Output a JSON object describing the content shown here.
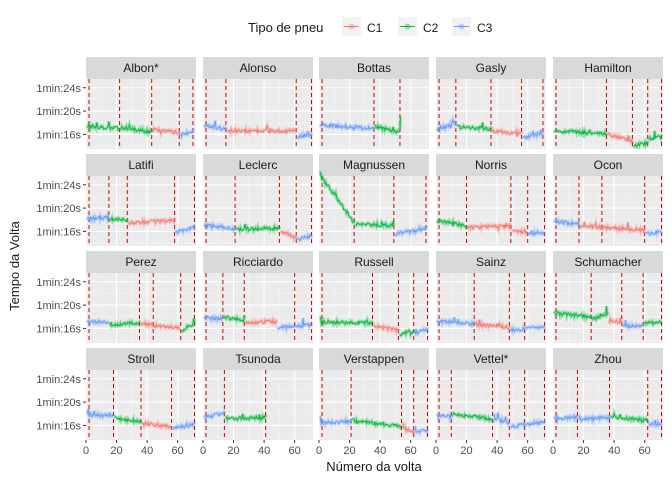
{
  "chart_data": {
    "type": "line",
    "title": "",
    "xlabel": "Número da volta",
    "ylabel": "Tempo da Volta",
    "xlim": [
      0,
      72
    ],
    "xticks": [
      0,
      20,
      40,
      60
    ],
    "ylim": [
      73.5,
      85.5
    ],
    "yticks": [
      {
        "value": 84,
        "label": "1min:24s"
      },
      {
        "value": 80,
        "label": "1min:20s"
      },
      {
        "value": 76,
        "label": "1min:16s"
      }
    ],
    "grid": true,
    "legend": {
      "title": "Tipo de pneu",
      "position": "top",
      "entries": [
        {
          "key": "C1",
          "label": "C1",
          "color": "#F8766D"
        },
        {
          "key": "C2",
          "label": "C2",
          "color": "#00BA38"
        },
        {
          "key": "C3",
          "label": "C3",
          "color": "#619CFF"
        }
      ]
    },
    "pit_stop_line_color": "#CC0000",
    "panels": [
      {
        "driver": "Albon*",
        "pits": [
          2,
          22,
          43,
          61,
          70
        ],
        "stints": [
          {
            "compound": "C2",
            "start": 1,
            "end": 22,
            "y0": 77.4,
            "y1": 77.0
          },
          {
            "compound": "C2",
            "start": 23,
            "end": 43,
            "y0": 77.2,
            "y1": 76.4
          },
          {
            "compound": "C1",
            "start": 44,
            "end": 61,
            "y0": 76.8,
            "y1": 76.3
          },
          {
            "compound": "C3",
            "start": 62,
            "end": 70,
            "y0": 75.9,
            "y1": 76.6
          }
        ]
      },
      {
        "driver": "Alonso",
        "pits": [
          2,
          15,
          61,
          71
        ],
        "stints": [
          {
            "compound": "C3",
            "start": 1,
            "end": 15,
            "y0": 77.6,
            "y1": 76.9
          },
          {
            "compound": "C1",
            "start": 16,
            "end": 61,
            "y0": 76.6,
            "y1": 76.6
          },
          {
            "compound": "C3",
            "start": 62,
            "end": 71,
            "y0": 75.5,
            "y1": 76.0
          }
        ]
      },
      {
        "driver": "Bottas",
        "pits": [
          2,
          36,
          53
        ],
        "stints": [
          {
            "compound": "C3",
            "start": 1,
            "end": 36,
            "y0": 77.6,
            "y1": 77.0
          },
          {
            "compound": "C2",
            "start": 37,
            "end": 52,
            "y0": 77.3,
            "y1": 76.4
          },
          {
            "compound": "C2",
            "start": 53,
            "end": 53,
            "y0": 77.0,
            "y1": 78.8
          }
        ]
      },
      {
        "driver": "Gasly",
        "pits": [
          2,
          13,
          36,
          56,
          70
        ],
        "stints": [
          {
            "compound": "C3",
            "start": 1,
            "end": 13,
            "y0": 76.8,
            "y1": 78.0
          },
          {
            "compound": "C2",
            "start": 14,
            "end": 36,
            "y0": 77.3,
            "y1": 77.0
          },
          {
            "compound": "C1",
            "start": 37,
            "end": 56,
            "y0": 76.6,
            "y1": 76.1
          },
          {
            "compound": "C3",
            "start": 57,
            "end": 70,
            "y0": 75.4,
            "y1": 76.3
          }
        ]
      },
      {
        "driver": "Hamilton",
        "pits": [
          2,
          35,
          52,
          62,
          71
        ],
        "stints": [
          {
            "compound": "C2",
            "start": 1,
            "end": 35,
            "y0": 76.6,
            "y1": 76.1
          },
          {
            "compound": "C1",
            "start": 36,
            "end": 52,
            "y0": 76.0,
            "y1": 74.8
          },
          {
            "compound": "C2",
            "start": 53,
            "end": 62,
            "y0": 74.1,
            "y1": 74.5
          },
          {
            "compound": "C2",
            "start": 63,
            "end": 71,
            "y0": 75.2,
            "y1": 75.6
          }
        ]
      },
      {
        "driver": "Latifi",
        "pits": [
          2,
          15,
          27,
          58,
          71
        ],
        "stints": [
          {
            "compound": "C3",
            "start": 1,
            "end": 15,
            "y0": 78.2,
            "y1": 78.4
          },
          {
            "compound": "C2",
            "start": 16,
            "end": 27,
            "y0": 78.1,
            "y1": 78.0
          },
          {
            "compound": "C1",
            "start": 28,
            "end": 58,
            "y0": 77.5,
            "y1": 77.9
          },
          {
            "compound": "C3",
            "start": 59,
            "end": 71,
            "y0": 75.9,
            "y1": 76.6
          }
        ]
      },
      {
        "driver": "Leclerc",
        "pits": [
          2,
          21,
          50,
          61,
          71
        ],
        "stints": [
          {
            "compound": "C3",
            "start": 1,
            "end": 21,
            "y0": 77.1,
            "y1": 76.4
          },
          {
            "compound": "C2",
            "start": 22,
            "end": 50,
            "y0": 76.3,
            "y1": 76.6
          },
          {
            "compound": "C1",
            "start": 51,
            "end": 61,
            "y0": 76.1,
            "y1": 74.8
          },
          {
            "compound": "C3",
            "start": 62,
            "end": 71,
            "y0": 74.6,
            "y1": 75.2
          }
        ]
      },
      {
        "driver": "Magnussen",
        "pits": [
          2,
          23,
          49,
          70
        ],
        "stints": [
          {
            "compound": "C2",
            "start": 1,
            "end": 23,
            "y0": 85.6,
            "y1": 77.5
          },
          {
            "compound": "C2",
            "start": 24,
            "end": 49,
            "y0": 77.3,
            "y1": 77.0
          },
          {
            "compound": "C3",
            "start": 50,
            "end": 70,
            "y0": 75.6,
            "y1": 76.4
          }
        ]
      },
      {
        "driver": "Norris",
        "pits": [
          2,
          20,
          49,
          60,
          71
        ],
        "stints": [
          {
            "compound": "C2",
            "start": 1,
            "end": 20,
            "y0": 77.8,
            "y1": 77.0
          },
          {
            "compound": "C1",
            "start": 21,
            "end": 49,
            "y0": 76.7,
            "y1": 76.9
          },
          {
            "compound": "C1",
            "start": 50,
            "end": 60,
            "y0": 76.2,
            "y1": 75.7
          },
          {
            "compound": "C3",
            "start": 61,
            "end": 71,
            "y0": 75.7,
            "y1": 75.8
          }
        ]
      },
      {
        "driver": "Ocon",
        "pits": [
          2,
          17,
          32,
          60,
          71
        ],
        "stints": [
          {
            "compound": "C3",
            "start": 1,
            "end": 17,
            "y0": 77.7,
            "y1": 77.3
          },
          {
            "compound": "C1",
            "start": 18,
            "end": 60,
            "y0": 76.9,
            "y1": 76.2
          },
          {
            "compound": "C3",
            "start": 61,
            "end": 71,
            "y0": 75.6,
            "y1": 75.9
          }
        ]
      },
      {
        "driver": "Perez",
        "pits": [
          2,
          35,
          44,
          62,
          71
        ],
        "stints": [
          {
            "compound": "C3",
            "start": 1,
            "end": 15,
            "y0": 77.1,
            "y1": 77.1
          },
          {
            "compound": "C2",
            "start": 16,
            "end": 35,
            "y0": 76.6,
            "y1": 77.0
          },
          {
            "compound": "C1",
            "start": 36,
            "end": 62,
            "y0": 76.8,
            "y1": 76.0
          },
          {
            "compound": "C2",
            "start": 63,
            "end": 71,
            "y0": 75.6,
            "y1": 76.9
          }
        ]
      },
      {
        "driver": "Ricciardo",
        "pits": [
          2,
          13,
          27,
          60,
          71
        ],
        "stints": [
          {
            "compound": "C3",
            "start": 1,
            "end": 13,
            "y0": 77.8,
            "y1": 77.6
          },
          {
            "compound": "C2",
            "start": 14,
            "end": 27,
            "y0": 77.9,
            "y1": 77.3
          },
          {
            "compound": "C1",
            "start": 28,
            "end": 48,
            "y0": 77.0,
            "y1": 77.2
          },
          {
            "compound": "C3",
            "start": 49,
            "end": 71,
            "y0": 76.1,
            "y1": 76.6
          }
        ]
      },
      {
        "driver": "Russell",
        "pits": [
          2,
          35,
          52,
          62,
          71
        ],
        "stints": [
          {
            "compound": "C2",
            "start": 1,
            "end": 35,
            "y0": 77.1,
            "y1": 76.9
          },
          {
            "compound": "C1",
            "start": 36,
            "end": 52,
            "y0": 76.4,
            "y1": 75.7
          },
          {
            "compound": "C2",
            "start": 53,
            "end": 62,
            "y0": 75.0,
            "y1": 75.6
          },
          {
            "compound": "C3",
            "start": 63,
            "end": 71,
            "y0": 75.2,
            "y1": 75.8
          }
        ]
      },
      {
        "driver": "Sainz",
        "pits": [
          2,
          25,
          48,
          58,
          71
        ],
        "stints": [
          {
            "compound": "C3",
            "start": 1,
            "end": 25,
            "y0": 77.2,
            "y1": 76.8
          },
          {
            "compound": "C1",
            "start": 26,
            "end": 48,
            "y0": 76.7,
            "y1": 76.2
          },
          {
            "compound": "C3",
            "start": 49,
            "end": 58,
            "y0": 75.7,
            "y1": 75.9
          },
          {
            "compound": "C3",
            "start": 59,
            "end": 71,
            "y0": 76.0,
            "y1": 76.2
          }
        ]
      },
      {
        "driver": "Schumacher",
        "pits": [
          2,
          25,
          45,
          59,
          71
        ],
        "stints": [
          {
            "compound": "C2",
            "start": 1,
            "end": 25,
            "y0": 78.6,
            "y1": 78.0
          },
          {
            "compound": "C2",
            "start": 26,
            "end": 36,
            "y0": 77.6,
            "y1": 78.6
          },
          {
            "compound": "C1",
            "start": 37,
            "end": 45,
            "y0": 77.5,
            "y1": 77.0
          },
          {
            "compound": "C3",
            "start": 46,
            "end": 59,
            "y0": 76.3,
            "y1": 76.6
          },
          {
            "compound": "C2",
            "start": 60,
            "end": 71,
            "y0": 76.8,
            "y1": 77.2
          }
        ]
      },
      {
        "driver": "Stroll",
        "pits": [
          2,
          18,
          36,
          56,
          71
        ],
        "stints": [
          {
            "compound": "C3",
            "start": 1,
            "end": 18,
            "y0": 77.8,
            "y1": 77.6
          },
          {
            "compound": "C2",
            "start": 19,
            "end": 36,
            "y0": 77.2,
            "y1": 76.7
          },
          {
            "compound": "C1",
            "start": 37,
            "end": 56,
            "y0": 76.3,
            "y1": 75.8
          },
          {
            "compound": "C3",
            "start": 57,
            "end": 71,
            "y0": 75.5,
            "y1": 76.2
          }
        ]
      },
      {
        "driver": "Tsunoda",
        "pits": [
          2,
          14,
          41
        ],
        "stints": [
          {
            "compound": "C3",
            "start": 1,
            "end": 14,
            "y0": 77.3,
            "y1": 78.2
          },
          {
            "compound": "C2",
            "start": 15,
            "end": 41,
            "y0": 77.2,
            "y1": 77.3
          }
        ]
      },
      {
        "driver": "Verstappen",
        "pits": [
          2,
          21,
          54,
          62,
          71
        ],
        "stints": [
          {
            "compound": "C3",
            "start": 1,
            "end": 21,
            "y0": 76.4,
            "y1": 76.7
          },
          {
            "compound": "C2",
            "start": 22,
            "end": 54,
            "y0": 76.9,
            "y1": 75.8
          },
          {
            "compound": "C1",
            "start": 55,
            "end": 62,
            "y0": 75.6,
            "y1": 74.9
          },
          {
            "compound": "C3",
            "start": 63,
            "end": 71,
            "y0": 74.9,
            "y1": 75.1
          }
        ]
      },
      {
        "driver": "Vettel*",
        "pits": [
          2,
          10,
          37,
          48,
          58,
          71
        ],
        "stints": [
          {
            "compound": "C3",
            "start": 1,
            "end": 10,
            "y0": 77.6,
            "y1": 77.5
          },
          {
            "compound": "C2",
            "start": 11,
            "end": 37,
            "y0": 77.9,
            "y1": 77.1
          },
          {
            "compound": "C3",
            "start": 38,
            "end": 48,
            "y0": 77.2,
            "y1": 76.4
          },
          {
            "compound": "C3",
            "start": 49,
            "end": 58,
            "y0": 75.8,
            "y1": 76.1
          },
          {
            "compound": "C3",
            "start": 59,
            "end": 71,
            "y0": 76.2,
            "y1": 76.7
          }
        ]
      },
      {
        "driver": "Zhou",
        "pits": [
          2,
          16,
          37,
          62,
          71
        ],
        "stints": [
          {
            "compound": "C3",
            "start": 1,
            "end": 16,
            "y0": 77.1,
            "y1": 77.4
          },
          {
            "compound": "C3",
            "start": 17,
            "end": 37,
            "y0": 77.0,
            "y1": 77.4
          },
          {
            "compound": "C2",
            "start": 38,
            "end": 62,
            "y0": 77.5,
            "y1": 76.8
          },
          {
            "compound": "C3",
            "start": 63,
            "end": 71,
            "y0": 76.1,
            "y1": 76.3
          }
        ]
      }
    ]
  }
}
